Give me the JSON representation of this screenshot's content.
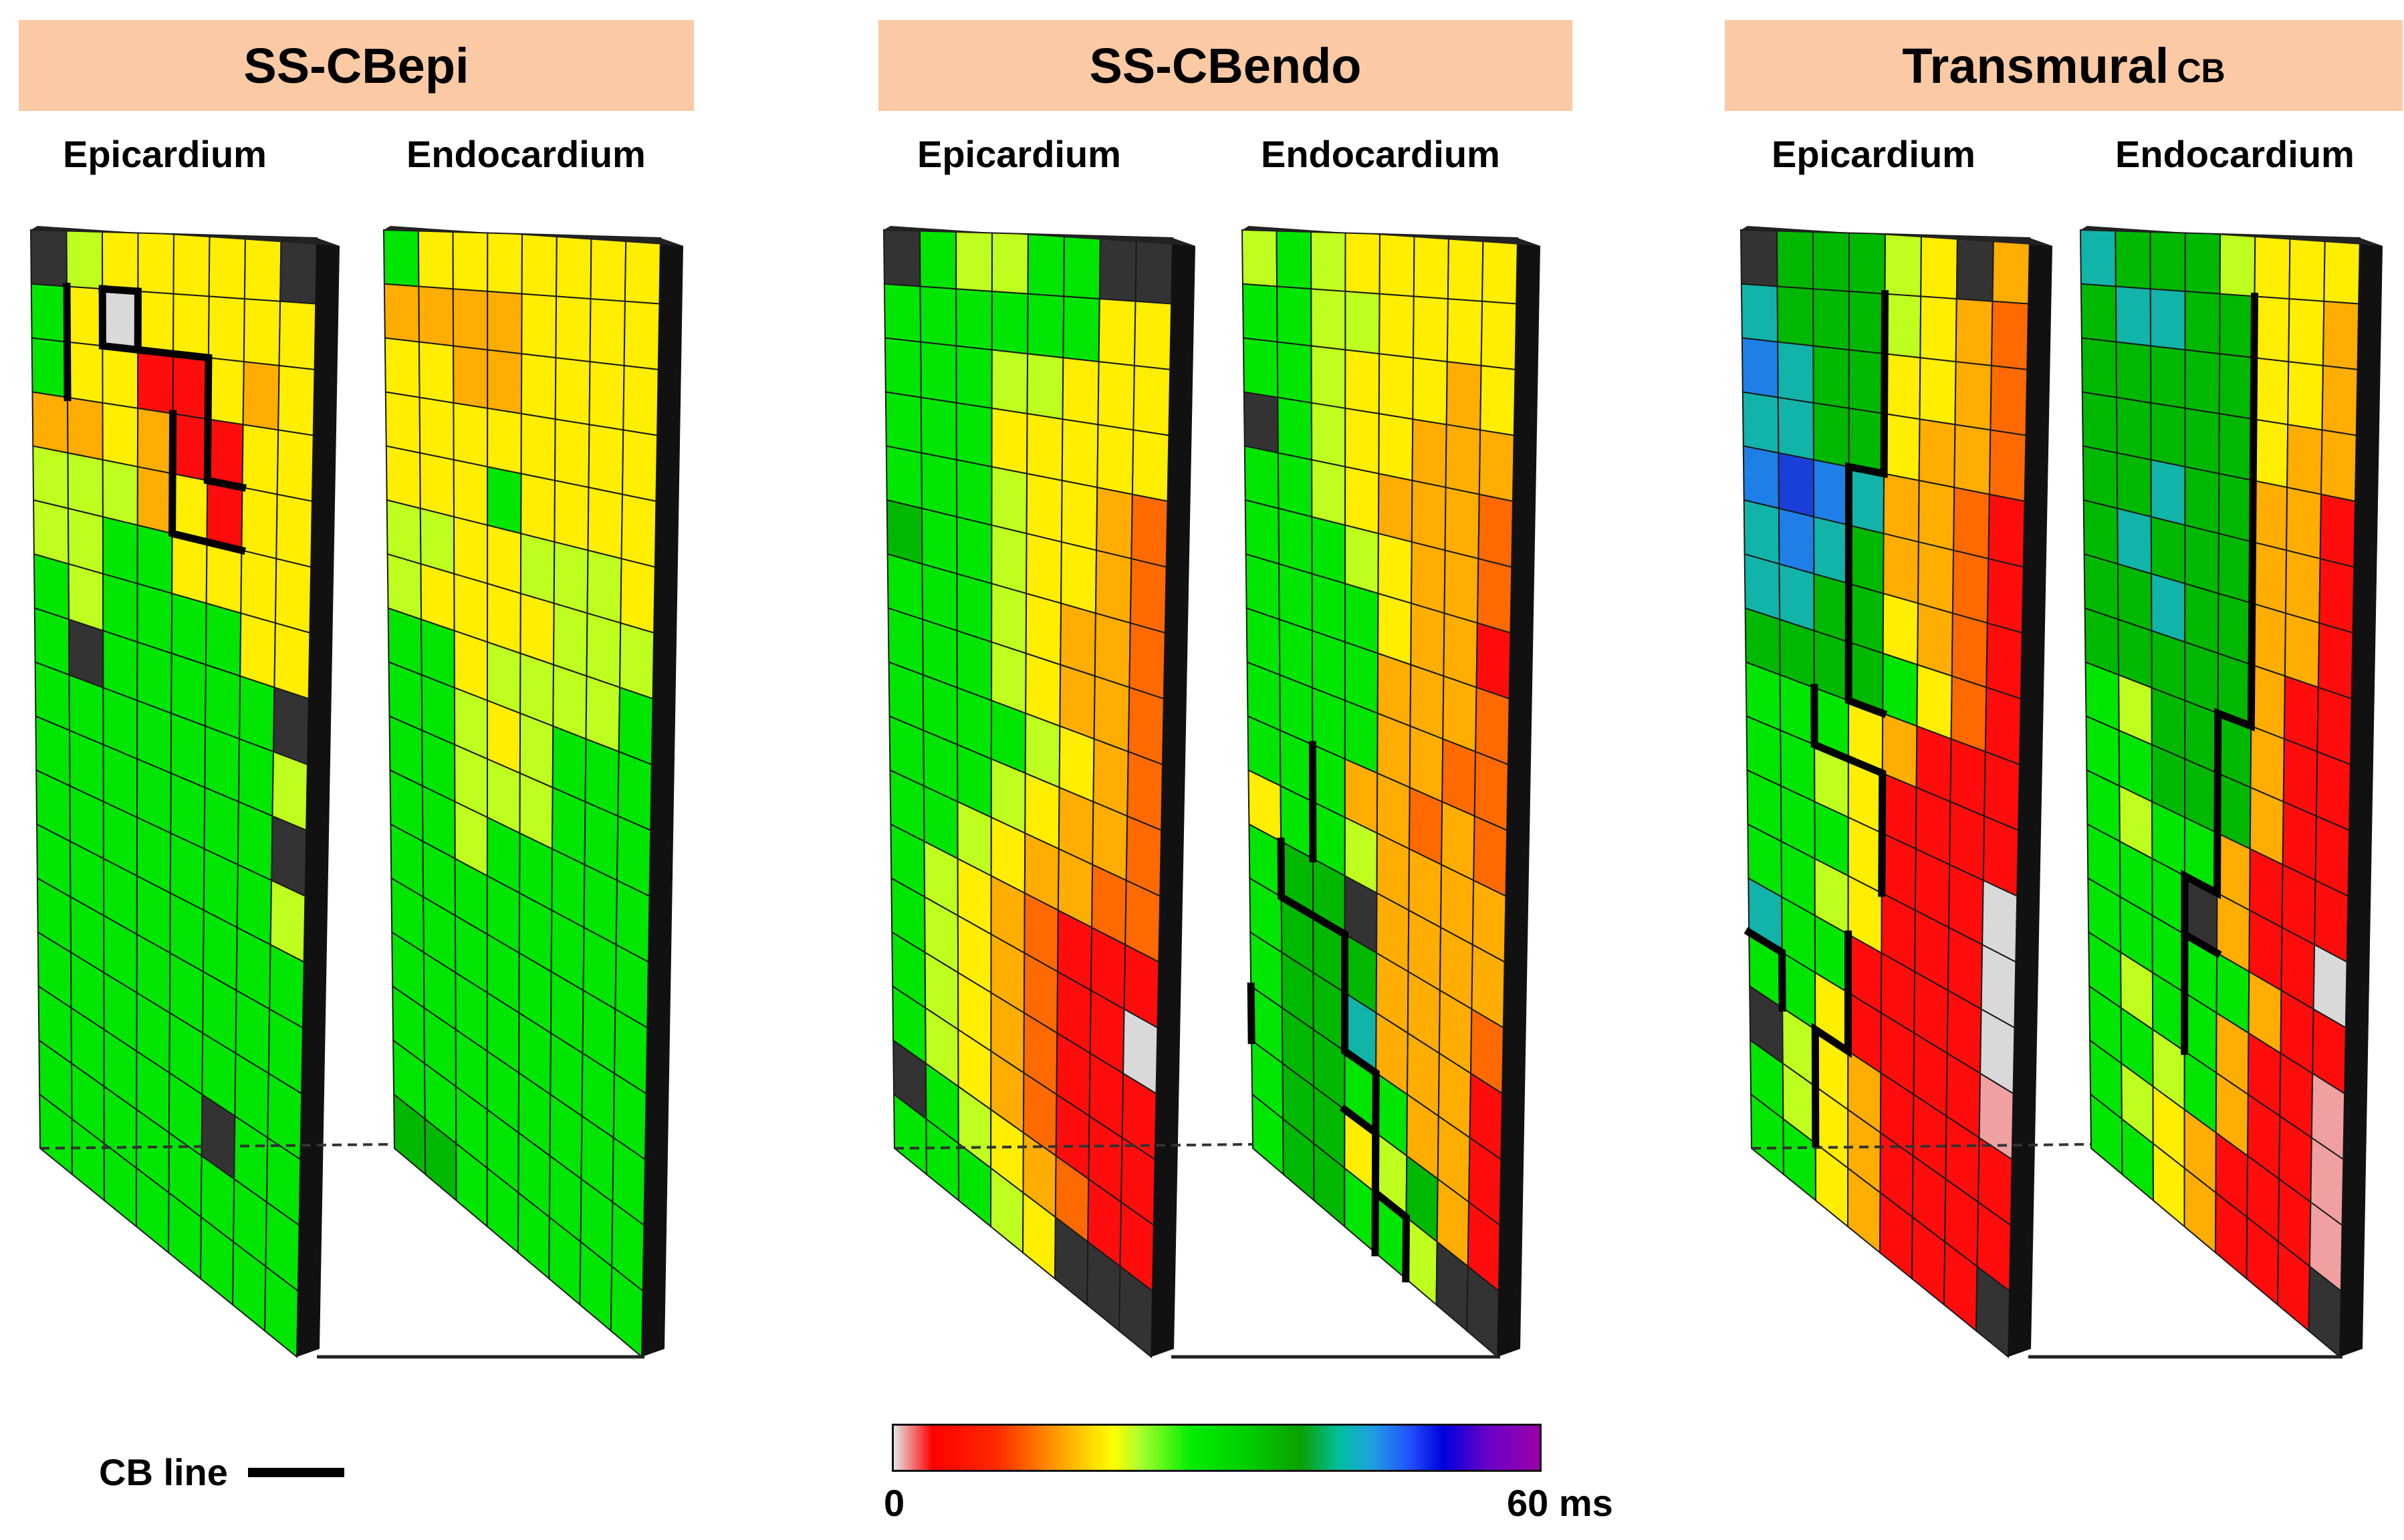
{
  "panels": [
    {
      "title": "SS-CBepi",
      "subscript": ""
    },
    {
      "title": "SS-CBendo",
      "subscript": ""
    },
    {
      "title": "Transmural",
      "subscript": "CB"
    }
  ],
  "surface_labels": {
    "epi": "Epicardium",
    "endo": "Endocardium"
  },
  "legend": {
    "cb_line_label": "CB line"
  },
  "colorbar": {
    "min_label": "0",
    "max_label": "60 ms",
    "min_value": 0,
    "max_value": 60,
    "unit": "ms"
  },
  "colors": {
    "banner": "#fbcaa4",
    "inactive_site": "#333333",
    "missing": "#d9d9d9"
  },
  "activation_grid_codes": "0=gray 1=red 2=orange-red 3=orange 4=yellow 5=yellow-green 6=green 7=dark green 8=teal 9=blue 10=deep blue 11=pale red; -1=inactive electrode",
  "maps": {
    "p1_epi": [
      "-1 5 4 4 4 4 4 -1",
      "6 4 0 4 4 4 4 4",
      "6 4 4 1 1 4 3 4",
      "3 3 4 3 1 1 4 4",
      "5 5 5 3 4 1 4 4",
      "5 5 6 6 4 4 4 4",
      "6 5 6 6 6 6 4 4",
      "6 -1 6 6 6 6 6 -1",
      "6 6 6 6 6 6 6 5",
      "6 6 6 6 6 6 6 -1",
      "6 6 6 6 6 6 6 5",
      "6 6 6 6 6 6 6 6",
      "6 6 6 6 6 6 6 6",
      "6 6 6 6 6 6 6 6",
      "6 6 6 6 6 -1 6 6",
      "6 6 6 6 6 6 6 6",
      "6 6 6 6 6 6 6 6"
    ],
    "p1_endo": [
      "6 4 4 4 4 4 4 4",
      "3 3 3 3 4 4 4 4",
      "4 4 3 3 4 4 4 4",
      "4 4 4 4 4 4 4 4",
      "4 4 4 6 4 4 4 4",
      "5 5 4 4 5 5 5 4",
      "5 4 4 4 4 5 5 5",
      "6 6 4 5 5 5 5 6",
      "6 6 5 4 5 6 6 6",
      "6 6 5 5 5 6 6 6",
      "6 6 5 6 6 6 6 6",
      "6 6 6 6 6 6 6 6",
      "6 6 6 6 6 6 6 6",
      "6 6 6 6 6 6 6 6",
      "6 6 6 6 6 6 6 6",
      "6 6 6 6 6 6 6 6",
      "7 7 6 6 6 6 6 6"
    ],
    "p2_epi": [
      "-1 6 5 5 6 6 -1 -1",
      "6 6 6 6 6 6 4 4",
      "6 6 6 5 5 4 4 4",
      "6 6 6 4 4 4 4 4",
      "6 6 6 5 4 4 3 2",
      "7 6 6 5 4 4 3 2",
      "6 6 6 5 4 3 3 2",
      "6 6 6 5 4 3 3 2",
      "6 6 6 6 5 4 3 2",
      "6 6 6 5 4 3 3 2",
      "6 6 5 4 3 3 2 2",
      "6 5 4 3 2 1 1 1",
      "6 5 4 3 2 1 1 0",
      "6 5 4 3 2 1 1 1",
      "6 5 4 3 2 1 1 1",
      "-1 6 5 4 3 2 1 1",
      "6 6 6 5 4 -1 -1 -1"
    ],
    "p2_endo": [
      "5 6 5 4 4 4 4 4",
      "6 6 5 5 4 4 4 4",
      "6 6 5 4 4 4 3 4",
      "-1 6 5 4 4 3 3 3",
      "6 6 5 4 3 3 3 2",
      "6 6 6 5 4 3 3 2",
      "6 6 6 6 4 3 3 1",
      "6 6 6 6 3 3 3 2",
      "6 6 6 6 3 3 2 2",
      "6 6 6 3 3 2 3 2",
      "4 6 6 5 3 3 3 3",
      "6 7 7 -1 3 3 3 3",
      "6 7 7 7 3 3 3 2",
      "6 7 7 8 3 3 3 1",
      "6 7 7 6 6 3 3 1",
      "6 7 7 4 5 7 3 1",
      "6 7 7 6 6 5 -1 -1"
    ],
    "p3_epi": [
      "-1 7 7 7 5 4 -1 3",
      "8 7 7 7 5 4 3 2",
      "9 8 7 7 4 4 3 2",
      "8 8 7 7 4 3 3 2",
      "9 10 9 8 3 3 2 1",
      "8 9 8 7 3 3 2 1",
      "8 8 7 7 4 3 2 1",
      "7 7 7 7 6 4 2 1",
      "6 6 6 4 3 1 1 1",
      "6 6 5 4 1 1 1 1",
      "6 6 6 4 1 1 1 0",
      "6 6 5 4 1 1 1 0",
      "8 6 6 1 1 1 1 0",
      "6 6 4 1 1 1 1 11",
      "-1 5 4 3 1 1 1 1",
      "6 5 4 3 1 1 1 1",
      "6 6 4 3 1 1 1 -1"
    ],
    "p3_endo": [
      "8 7 7 7 5 4 4 4",
      "7 8 8 7 7 4 4 3",
      "7 7 7 7 7 4 4 3",
      "7 7 7 7 7 4 3 3",
      "7 7 8 7 7 3 3 1",
      "7 8 7 7 7 3 3 1",
      "7 7 8 7 7 3 3 1",
      "7 7 7 7 7 3 1 1",
      "6 5 7 7 7 3 1 1",
      "6 6 7 7 7 3 1 1",
      "6 5 6 6 3 1 1 1",
      "6 6 6 -1 3 1 1 0",
      "6 6 6 6 6 3 1 1",
      "6 5 6 6 3 1 1 11",
      "6 6 5 6 3 1 1 11",
      "6 5 4 3 1 1 1 11",
      "6 6 4 3 1 1 1 -1"
    ]
  }
}
